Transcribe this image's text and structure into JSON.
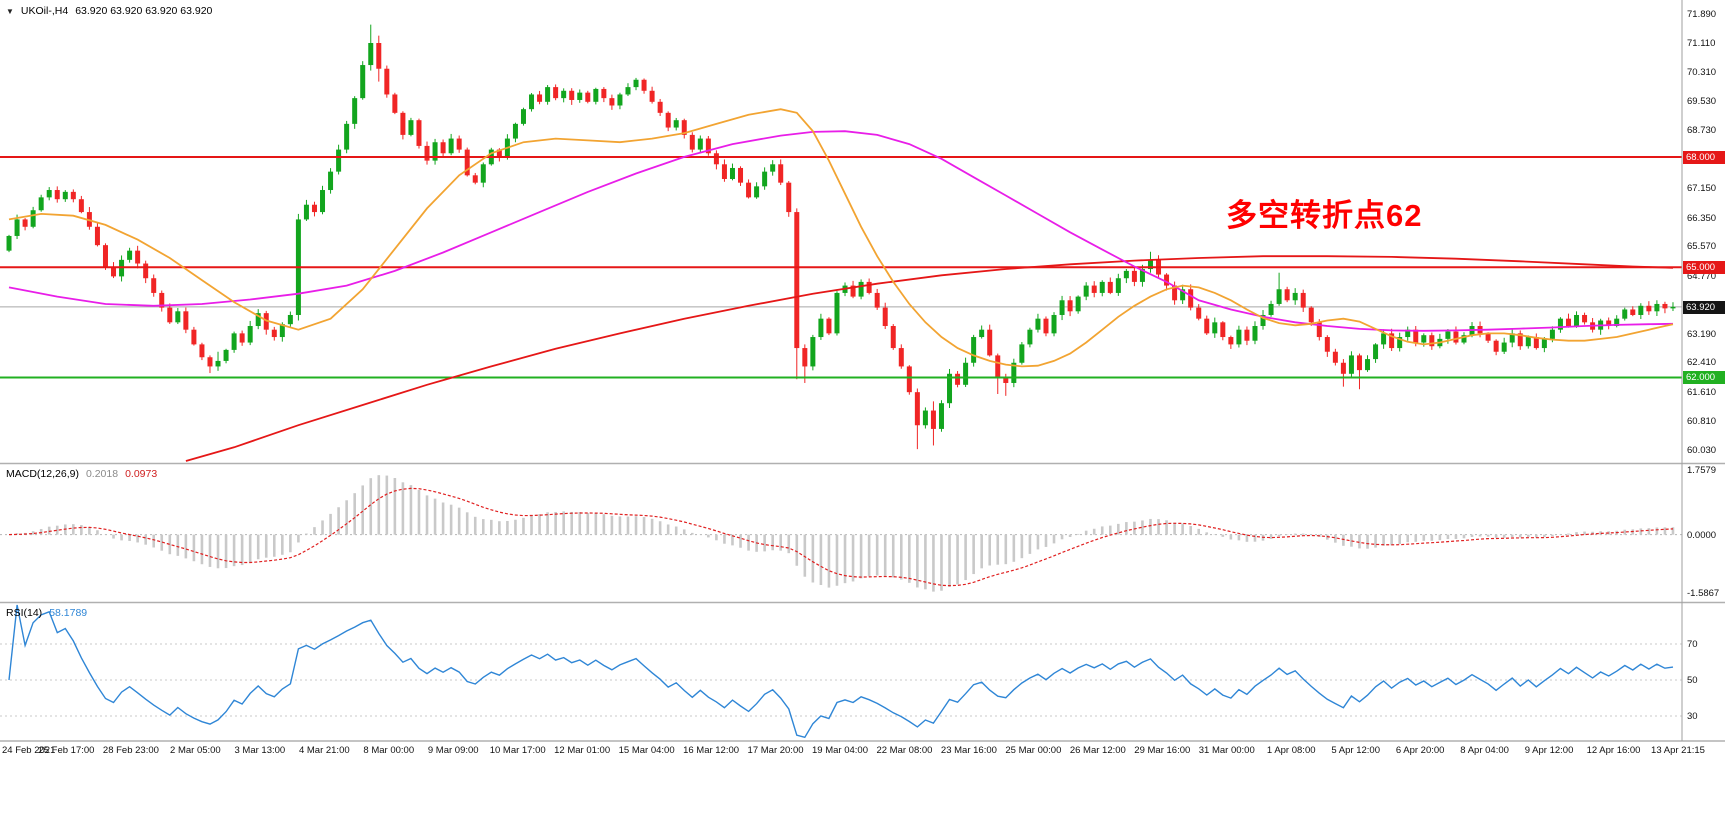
{
  "window": {
    "dropdown_icon": "▼",
    "symbol": "UKOil-,H4",
    "ohlc_text": "63.920 63.920 63.920 63.920"
  },
  "annotation": {
    "text": "多空转折点62",
    "color": "#ff0000"
  },
  "panels": {
    "macd": {
      "label": "MACD(12,26,9)",
      "value_main": "0.2018",
      "value_signal": "0.0973"
    },
    "rsi": {
      "label": "RSI(14)",
      "value": "58.1789"
    }
  },
  "colors": {
    "up": "#12a51e",
    "down": "#f02525",
    "ma_fast": "#f2a432",
    "ma_mid": "#e81ee8",
    "ma_slow": "#e51717",
    "macd_hist": "#c9c9c9",
    "macd_signal": "#e02020",
    "rsi": "#2f86d6",
    "current_line": "#a8a8a8"
  },
  "chart_data": {
    "type": "candlestick",
    "symbol": "UKOil-,H4",
    "x_labels": [
      "24 Feb 2021",
      "25 Feb 17:00",
      "28 Feb 23:00",
      "2 Mar 05:00",
      "3 Mar 13:00",
      "4 Mar 21:00",
      "8 Mar 00:00",
      "9 Mar 09:00",
      "10 Mar 17:00",
      "12 Mar 01:00",
      "15 Mar 04:00",
      "16 Mar 12:00",
      "17 Mar 20:00",
      "19 Mar 04:00",
      "22 Mar 08:00",
      "23 Mar 16:00",
      "25 Mar 00:00",
      "26 Mar 12:00",
      "29 Mar 16:00",
      "31 Mar 00:00",
      "1 Apr 08:00",
      "5 Apr 12:00",
      "6 Apr 20:00",
      "8 Apr 04:00",
      "9 Apr 12:00",
      "12 Apr 16:00",
      "13 Apr 21:15"
    ],
    "ylim": [
      59.7,
      72.27
    ],
    "yticks": [
      71.89,
      71.11,
      70.31,
      69.53,
      68.73,
      67.15,
      66.35,
      65.57,
      64.77,
      63.19,
      62.41,
      61.61,
      60.81,
      60.03
    ],
    "levels": [
      {
        "name": "resistance-line-68",
        "price": 68.0,
        "label": "68.000",
        "color": "#e51717"
      },
      {
        "name": "pivot-line-65",
        "price": 65.0,
        "label": "65.000",
        "color": "#e51717"
      },
      {
        "name": "support-line-62",
        "price": 62.0,
        "label": "62.000",
        "color": "#21b021"
      },
      {
        "name": "current-price-line",
        "price": 63.92,
        "label": "63.920",
        "color": "#151515",
        "current": true
      }
    ],
    "first_open": 65.45,
    "closes": [
      65.85,
      66.3,
      66.1,
      66.55,
      66.9,
      67.1,
      66.85,
      67.05,
      66.85,
      66.5,
      66.1,
      65.6,
      65.0,
      64.75,
      65.2,
      65.45,
      65.1,
      64.7,
      64.3,
      63.9,
      63.5,
      63.8,
      63.3,
      62.9,
      62.55,
      62.3,
      62.45,
      62.75,
      63.2,
      62.95,
      63.4,
      63.75,
      63.3,
      63.1,
      63.45,
      63.7,
      66.3,
      66.7,
      66.5,
      67.1,
      67.6,
      68.2,
      68.9,
      69.6,
      70.5,
      71.1,
      70.4,
      69.7,
      69.2,
      68.6,
      69.0,
      68.3,
      67.9,
      68.4,
      68.1,
      68.5,
      68.2,
      67.5,
      67.3,
      67.8,
      68.2,
      68.0,
      68.5,
      68.9,
      69.3,
      69.7,
      69.5,
      69.9,
      69.6,
      69.8,
      69.55,
      69.75,
      69.5,
      69.85,
      69.6,
      69.4,
      69.7,
      69.9,
      70.1,
      69.8,
      69.5,
      69.2,
      68.8,
      69.0,
      68.6,
      68.2,
      68.5,
      68.1,
      67.8,
      67.4,
      67.7,
      67.3,
      66.9,
      67.2,
      67.6,
      67.8,
      67.3,
      66.5,
      62.8,
      62.3,
      63.1,
      63.6,
      63.2,
      64.3,
      64.5,
      64.2,
      64.6,
      64.3,
      63.9,
      63.4,
      62.8,
      62.3,
      61.6,
      60.7,
      61.1,
      60.6,
      61.3,
      62.1,
      61.8,
      62.4,
      63.1,
      63.3,
      62.6,
      62.0,
      61.85,
      62.4,
      62.9,
      63.3,
      63.6,
      63.2,
      63.7,
      64.1,
      63.8,
      64.2,
      64.5,
      64.3,
      64.6,
      64.3,
      64.7,
      64.9,
      64.6,
      64.95,
      65.2,
      64.8,
      64.5,
      64.1,
      64.4,
      63.9,
      63.6,
      63.2,
      63.5,
      63.1,
      62.9,
      63.3,
      63.0,
      63.4,
      63.7,
      64.0,
      64.4,
      64.1,
      64.3,
      63.9,
      63.5,
      63.1,
      62.7,
      62.4,
      62.1,
      62.6,
      62.2,
      62.5,
      62.9,
      63.2,
      62.8,
      63.1,
      63.3,
      62.95,
      63.15,
      62.85,
      63.05,
      63.25,
      62.95,
      63.15,
      63.4,
      63.2,
      63.0,
      62.7,
      62.95,
      63.2,
      62.85,
      63.1,
      62.8,
      63.05,
      63.3,
      63.6,
      63.4,
      63.7,
      63.5,
      63.3,
      63.55,
      63.4,
      63.6,
      63.85,
      63.7,
      63.95,
      63.8,
      64.0,
      63.88,
      63.92
    ],
    "wick_overrides": {
      "25": [
        62.6,
        62.12
      ],
      "26": [
        62.7,
        62.18
      ],
      "36": [
        66.45,
        63.55
      ],
      "45": [
        71.6,
        70.35
      ],
      "46": [
        71.3,
        70.05
      ],
      "98": [
        66.6,
        61.95
      ],
      "99": [
        62.9,
        61.85
      ],
      "113": [
        61.7,
        60.05
      ],
      "115": [
        61.35,
        60.15
      ],
      "123": [
        62.65,
        61.55
      ],
      "124": [
        62.1,
        61.5
      ],
      "142": [
        65.42,
        64.85
      ],
      "158": [
        64.85,
        63.95
      ],
      "166": [
        62.5,
        61.75
      ],
      "168": [
        62.65,
        61.68
      ]
    },
    "mas": [
      {
        "name": "ma-slow-line",
        "color": "#e51717",
        "points": [
          [
            22,
            59.7
          ],
          [
            28,
            60.1
          ],
          [
            36,
            60.7
          ],
          [
            44,
            61.25
          ],
          [
            52,
            61.8
          ],
          [
            60,
            62.3
          ],
          [
            68,
            62.78
          ],
          [
            76,
            63.2
          ],
          [
            84,
            63.6
          ],
          [
            92,
            63.95
          ],
          [
            100,
            64.28
          ],
          [
            108,
            64.55
          ],
          [
            116,
            64.78
          ],
          [
            124,
            64.95
          ],
          [
            132,
            65.08
          ],
          [
            140,
            65.18
          ],
          [
            148,
            65.25
          ],
          [
            156,
            65.3
          ],
          [
            164,
            65.3
          ],
          [
            172,
            65.28
          ],
          [
            180,
            65.23
          ],
          [
            188,
            65.16
          ],
          [
            196,
            65.08
          ],
          [
            202,
            65.02
          ],
          [
            207,
            64.98
          ]
        ]
      },
      {
        "name": "ma-mid-line",
        "color": "#e81ee8",
        "points": [
          [
            0,
            64.45
          ],
          [
            6,
            64.2
          ],
          [
            12,
            64.0
          ],
          [
            18,
            63.95
          ],
          [
            24,
            64.0
          ],
          [
            30,
            64.12
          ],
          [
            36,
            64.28
          ],
          [
            42,
            64.5
          ],
          [
            48,
            64.9
          ],
          [
            54,
            65.4
          ],
          [
            60,
            65.95
          ],
          [
            66,
            66.5
          ],
          [
            72,
            67.05
          ],
          [
            78,
            67.55
          ],
          [
            84,
            68.0
          ],
          [
            90,
            68.35
          ],
          [
            96,
            68.58
          ],
          [
            100,
            68.68
          ],
          [
            104,
            68.7
          ],
          [
            108,
            68.6
          ],
          [
            112,
            68.35
          ],
          [
            116,
            67.95
          ],
          [
            120,
            67.45
          ],
          [
            124,
            66.95
          ],
          [
            128,
            66.45
          ],
          [
            132,
            65.95
          ],
          [
            136,
            65.48
          ],
          [
            140,
            65.02
          ],
          [
            144,
            64.6
          ],
          [
            148,
            64.1
          ],
          [
            152,
            63.85
          ],
          [
            156,
            63.65
          ],
          [
            160,
            63.5
          ],
          [
            164,
            63.4
          ],
          [
            168,
            63.32
          ],
          [
            172,
            63.28
          ],
          [
            176,
            63.27
          ],
          [
            180,
            63.28
          ],
          [
            184,
            63.3
          ],
          [
            188,
            63.33
          ],
          [
            192,
            63.36
          ],
          [
            196,
            63.4
          ],
          [
            200,
            63.43
          ],
          [
            204,
            63.45
          ],
          [
            207,
            63.46
          ]
        ]
      },
      {
        "name": "ma-fast-line",
        "color": "#f2a432",
        "points": [
          [
            0,
            66.3
          ],
          [
            4,
            66.45
          ],
          [
            8,
            66.4
          ],
          [
            12,
            66.15
          ],
          [
            16,
            65.75
          ],
          [
            20,
            65.25
          ],
          [
            24,
            64.65
          ],
          [
            28,
            64.05
          ],
          [
            32,
            63.55
          ],
          [
            36,
            63.3
          ],
          [
            40,
            63.6
          ],
          [
            44,
            64.4
          ],
          [
            48,
            65.5
          ],
          [
            52,
            66.6
          ],
          [
            56,
            67.5
          ],
          [
            60,
            68.1
          ],
          [
            64,
            68.4
          ],
          [
            68,
            68.5
          ],
          [
            72,
            68.45
          ],
          [
            76,
            68.4
          ],
          [
            80,
            68.5
          ],
          [
            84,
            68.65
          ],
          [
            88,
            68.9
          ],
          [
            92,
            69.15
          ],
          [
            96,
            69.3
          ],
          [
            98,
            69.2
          ],
          [
            100,
            68.7
          ],
          [
            102,
            67.9
          ],
          [
            104,
            67.0
          ],
          [
            106,
            66.1
          ],
          [
            108,
            65.3
          ],
          [
            110,
            64.6
          ],
          [
            112,
            64.0
          ],
          [
            114,
            63.5
          ],
          [
            116,
            63.1
          ],
          [
            118,
            62.8
          ],
          [
            120,
            62.6
          ],
          [
            122,
            62.45
          ],
          [
            124,
            62.35
          ],
          [
            126,
            62.3
          ],
          [
            128,
            62.32
          ],
          [
            130,
            62.45
          ],
          [
            132,
            62.65
          ],
          [
            134,
            62.95
          ],
          [
            136,
            63.3
          ],
          [
            138,
            63.65
          ],
          [
            140,
            63.95
          ],
          [
            142,
            64.2
          ],
          [
            144,
            64.4
          ],
          [
            146,
            64.5
          ],
          [
            148,
            64.45
          ],
          [
            150,
            64.3
          ],
          [
            152,
            64.1
          ],
          [
            154,
            63.85
          ],
          [
            156,
            63.62
          ],
          [
            158,
            63.48
          ],
          [
            160,
            63.42
          ],
          [
            162,
            63.46
          ],
          [
            164,
            63.55
          ],
          [
            166,
            63.6
          ],
          [
            168,
            63.52
          ],
          [
            170,
            63.32
          ],
          [
            172,
            63.12
          ],
          [
            174,
            62.97
          ],
          [
            176,
            62.9
          ],
          [
            178,
            62.95
          ],
          [
            180,
            63.05
          ],
          [
            182,
            63.15
          ],
          [
            184,
            63.2
          ],
          [
            186,
            63.2
          ],
          [
            188,
            63.15
          ],
          [
            190,
            63.08
          ],
          [
            192,
            63.03
          ],
          [
            194,
            63.0
          ],
          [
            196,
            63.0
          ],
          [
            198,
            63.05
          ],
          [
            200,
            63.1
          ],
          [
            202,
            63.2
          ],
          [
            204,
            63.3
          ],
          [
            206,
            63.4
          ],
          [
            207,
            63.45
          ]
        ]
      }
    ],
    "macd": {
      "params": [
        12,
        26,
        9
      ],
      "current_main": 0.2018,
      "current_signal": 0.0973,
      "ylim": [
        -1.805,
        1.894
      ],
      "yticks": [
        {
          "v": 1.7579,
          "t": "1.7579"
        },
        {
          "v": 0,
          "t": "0.0000"
        },
        {
          "v": -1.5867,
          "t": "-1.5867"
        }
      ]
    },
    "rsi": {
      "period": 14,
      "current": 58.1789,
      "ylim": [
        16.7,
        92.2
      ],
      "levels": [
        70,
        50,
        30
      ]
    }
  }
}
